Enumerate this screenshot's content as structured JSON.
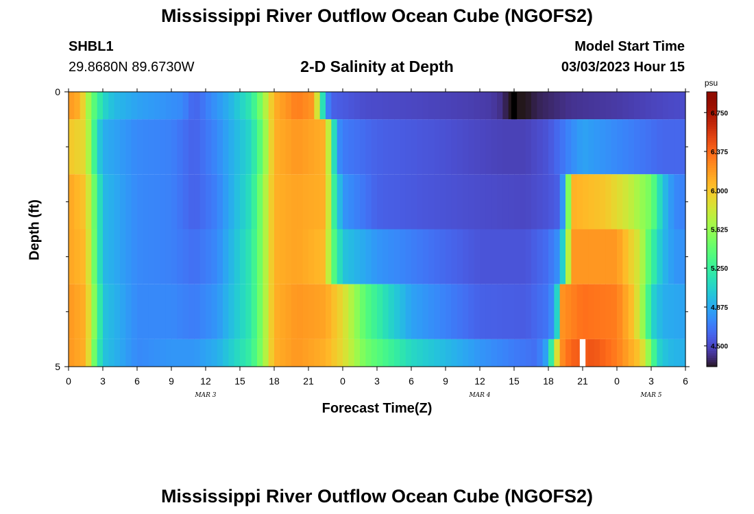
{
  "header": {
    "title": "Mississippi River Outflow Ocean Cube (NGOFS2)",
    "station": "SHBL1",
    "coords": "29.8680N  89.6730W",
    "subtitle": "2-D Salinity at Depth",
    "model_start_label": "Model Start Time",
    "model_start_value": "03/03/2023 Hour 15"
  },
  "footer": {
    "title": "Mississippi River Outflow Ocean Cube (NGOFS2)"
  },
  "chart_data": {
    "type": "heatmap",
    "title": "2-D Salinity at Depth",
    "xlabel": "Forecast Time(Z)",
    "ylabel": "Depth (ft)",
    "x_tick_labels": [
      "0",
      "3",
      "6",
      "9",
      "12",
      "15",
      "18",
      "21",
      "0",
      "3",
      "6",
      "9",
      "12",
      "15",
      "18",
      "21",
      "0",
      "3",
      "6"
    ],
    "x_range_hours": [
      0,
      54
    ],
    "day_labels": [
      {
        "label": "MAR 3",
        "hour": 12
      },
      {
        "label": "MAR 4",
        "hour": 36
      },
      {
        "label": "MAR 5",
        "hour": 51
      }
    ],
    "y_tick_labels": [
      "0",
      "5"
    ],
    "ylim": [
      0,
      5
    ],
    "colorbar": {
      "unit": "psu",
      "ticks": [
        "6.750",
        "6.375",
        "6.000",
        "5.625",
        "5.250",
        "4.875",
        "4.500"
      ],
      "range": [
        4.3,
        6.95
      ]
    },
    "depth_layers": [
      {
        "depth_range": [
          0.0,
          0.5
        ],
        "keys": [
          [
            0,
            6.2
          ],
          [
            1,
            6.1
          ],
          [
            2,
            5.5
          ],
          [
            3,
            5.1
          ],
          [
            4,
            4.95
          ],
          [
            6,
            4.85
          ],
          [
            8,
            4.8
          ],
          [
            10,
            4.75
          ],
          [
            11,
            4.6
          ],
          [
            12,
            4.7
          ],
          [
            14,
            4.9
          ],
          [
            16,
            5.2
          ],
          [
            17,
            5.6
          ],
          [
            18,
            6.1
          ],
          [
            20,
            6.3
          ],
          [
            21.5,
            6.2
          ],
          [
            22.5,
            4.8
          ],
          [
            23,
            4.6
          ],
          [
            26,
            4.52
          ],
          [
            30,
            4.5
          ],
          [
            35,
            4.47
          ],
          [
            37,
            4.45
          ],
          [
            38,
            4.4
          ],
          [
            38.5,
            4.3
          ],
          [
            39,
            4.2
          ],
          [
            40,
            4.3
          ],
          [
            41,
            4.35
          ],
          [
            44,
            4.42
          ],
          [
            48,
            4.45
          ],
          [
            52,
            4.5
          ],
          [
            54,
            4.52
          ]
        ]
      },
      {
        "depth_range": [
          0.5,
          1.5
        ],
        "keys": [
          [
            0,
            6.0
          ],
          [
            1.5,
            5.9
          ],
          [
            2.5,
            5.1
          ],
          [
            3,
            4.9
          ],
          [
            6,
            4.75
          ],
          [
            9,
            4.72
          ],
          [
            11,
            4.6
          ],
          [
            13,
            4.75
          ],
          [
            16,
            5.1
          ],
          [
            17,
            5.5
          ],
          [
            18,
            6.1
          ],
          [
            20,
            6.2
          ],
          [
            22.5,
            6.1
          ],
          [
            23.5,
            4.8
          ],
          [
            24,
            4.7
          ],
          [
            27,
            4.6
          ],
          [
            32,
            4.55
          ],
          [
            36,
            4.5
          ],
          [
            38,
            4.48
          ],
          [
            40,
            4.48
          ],
          [
            42,
            4.55
          ],
          [
            43.5,
            4.7
          ],
          [
            45,
            4.85
          ],
          [
            48,
            4.75
          ],
          [
            52,
            4.62
          ],
          [
            54,
            4.62
          ]
        ]
      },
      {
        "depth_range": [
          1.5,
          2.5
        ],
        "keys": [
          [
            0,
            6.15
          ],
          [
            1.5,
            6.0
          ],
          [
            2.5,
            5.3
          ],
          [
            3,
            4.95
          ],
          [
            6,
            4.75
          ],
          [
            9,
            4.72
          ],
          [
            11,
            4.6
          ],
          [
            13,
            4.72
          ],
          [
            16,
            5.15
          ],
          [
            17,
            5.6
          ],
          [
            18,
            6.1
          ],
          [
            20,
            6.15
          ],
          [
            22.5,
            6.1
          ],
          [
            23.3,
            5.2
          ],
          [
            24,
            4.8
          ],
          [
            27,
            4.6
          ],
          [
            32,
            4.55
          ],
          [
            36,
            4.52
          ],
          [
            40,
            4.5
          ],
          [
            42,
            4.55
          ],
          [
            43,
            4.6
          ],
          [
            43.5,
            5.0
          ],
          [
            44,
            6.1
          ],
          [
            47,
            6.0
          ],
          [
            49,
            5.8
          ],
          [
            51,
            5.5
          ],
          [
            52,
            5.0
          ],
          [
            53,
            4.75
          ],
          [
            54,
            4.72
          ]
        ]
      },
      {
        "depth_range": [
          2.5,
          3.5
        ],
        "keys": [
          [
            0,
            6.15
          ],
          [
            1.5,
            6.05
          ],
          [
            2.5,
            5.3
          ],
          [
            3,
            4.95
          ],
          [
            6,
            4.75
          ],
          [
            9,
            4.72
          ],
          [
            11,
            4.65
          ],
          [
            13,
            4.75
          ],
          [
            16,
            5.2
          ],
          [
            17,
            5.6
          ],
          [
            18,
            6.1
          ],
          [
            20,
            6.15
          ],
          [
            22.5,
            6.05
          ],
          [
            23,
            5.5
          ],
          [
            24,
            5.0
          ],
          [
            27,
            4.8
          ],
          [
            32,
            4.65
          ],
          [
            36,
            4.55
          ],
          [
            40,
            4.55
          ],
          [
            42,
            4.65
          ],
          [
            43,
            4.8
          ],
          [
            43.5,
            5.3
          ],
          [
            44,
            6.2
          ],
          [
            48,
            6.2
          ],
          [
            49,
            6.0
          ],
          [
            50,
            5.8
          ],
          [
            51,
            5.3
          ],
          [
            52,
            4.95
          ],
          [
            53,
            4.8
          ],
          [
            54,
            4.78
          ]
        ]
      },
      {
        "depth_range": [
          3.5,
          4.5
        ],
        "keys": [
          [
            0,
            6.2
          ],
          [
            1.5,
            6.1
          ],
          [
            2.5,
            5.4
          ],
          [
            3,
            5.0
          ],
          [
            6,
            4.75
          ],
          [
            9,
            4.75
          ],
          [
            11,
            4.7
          ],
          [
            13,
            4.8
          ],
          [
            16,
            5.2
          ],
          [
            17,
            5.6
          ],
          [
            18,
            6.1
          ],
          [
            20,
            6.2
          ],
          [
            22.5,
            6.15
          ],
          [
            24,
            5.9
          ],
          [
            26,
            5.4
          ],
          [
            28,
            5.1
          ],
          [
            30,
            4.85
          ],
          [
            33,
            4.72
          ],
          [
            36,
            4.6
          ],
          [
            40,
            4.58
          ],
          [
            42,
            4.68
          ],
          [
            42.7,
            4.85
          ],
          [
            43,
            6.2
          ],
          [
            45,
            6.35
          ],
          [
            48,
            6.3
          ],
          [
            49.5,
            6.0
          ],
          [
            50.5,
            5.5
          ],
          [
            51,
            5.1
          ],
          [
            52,
            4.9
          ],
          [
            54,
            4.85
          ]
        ]
      },
      {
        "depth_range": [
          4.5,
          5.0
        ],
        "keys": [
          [
            0,
            6.2
          ],
          [
            1.5,
            6.1
          ],
          [
            2.5,
            5.3
          ],
          [
            3,
            5.0
          ],
          [
            6,
            4.75
          ],
          [
            9,
            4.8
          ],
          [
            11,
            4.8
          ],
          [
            13,
            4.9
          ],
          [
            16,
            5.25
          ],
          [
            17,
            5.6
          ],
          [
            18,
            6.1
          ],
          [
            20,
            6.2
          ],
          [
            22.5,
            6.1
          ],
          [
            24,
            5.9
          ],
          [
            26,
            5.5
          ],
          [
            28,
            5.3
          ],
          [
            30,
            5.1
          ],
          [
            33,
            4.95
          ],
          [
            36,
            4.8
          ],
          [
            39,
            4.7
          ],
          [
            41,
            4.65
          ],
          [
            42,
            4.9
          ],
          [
            43,
            6.2
          ],
          [
            44,
            6.4
          ],
          [
            46,
            6.45
          ],
          [
            48,
            6.3
          ],
          [
            50,
            6.0
          ],
          [
            51,
            5.5
          ],
          [
            51.5,
            5.1
          ],
          [
            52.5,
            4.95
          ],
          [
            54,
            4.9
          ]
        ]
      }
    ],
    "annotations": [
      {
        "type": "min-marker",
        "color": "#000000",
        "hour": 39,
        "depth_range": [
          0,
          0.5
        ]
      },
      {
        "type": "max-marker",
        "color": "#ffffff",
        "hour": 45,
        "depth_range": [
          4.5,
          5.0
        ]
      }
    ],
    "colors": {
      "low": "#30123b",
      "mid": "#41f2a0",
      "high": "#7a0403"
    }
  }
}
